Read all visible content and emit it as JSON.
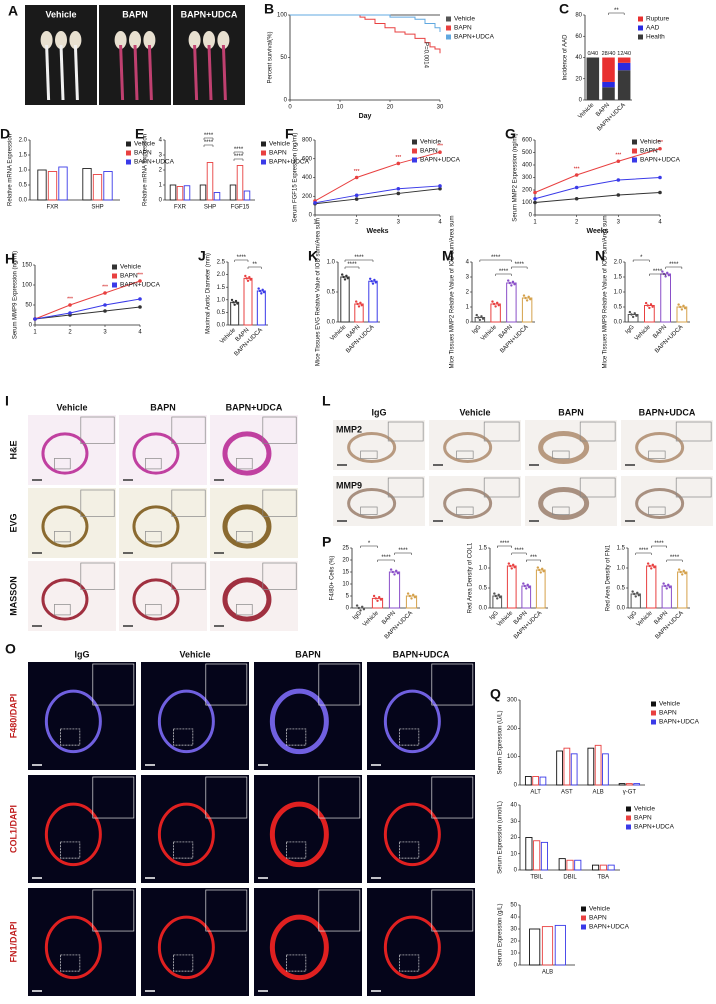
{
  "chart_data": [
    {
      "panel": "B",
      "type": "line",
      "step": true,
      "xlabel": "Day",
      "ylabel": "Percent survival(%)",
      "xlim": [
        0,
        30
      ],
      "xticks": [
        0,
        10,
        20,
        30
      ],
      "ylim": [
        0,
        100
      ],
      "yticks": [
        0,
        50,
        100
      ],
      "annotation": "P=0.0014",
      "legend": "right",
      "series": [
        {
          "name": "Vehicle",
          "color": "#555555",
          "x": [
            0,
            30
          ],
          "values": [
            100,
            100
          ]
        },
        {
          "name": "BAPN",
          "color": "#e84040",
          "x": [
            0,
            14,
            15,
            17,
            19,
            21,
            23,
            25,
            27,
            28,
            29,
            30
          ],
          "values": [
            100,
            97.5,
            95,
            90,
            85,
            80,
            77.5,
            72.5,
            67.5,
            62.5,
            60,
            55
          ]
        },
        {
          "name": "BAPN+UDCA",
          "color": "#60a8e0",
          "x": [
            0,
            20,
            25,
            27,
            29,
            30
          ],
          "values": [
            100,
            97.5,
            95,
            90,
            85,
            80
          ]
        }
      ]
    },
    {
      "panel": "C",
      "type": "stacked",
      "ylabel": "Incidence of AAD",
      "categories": [
        "Vehicle",
        "BAPN",
        "BAPN+UDCA"
      ],
      "ylim": [
        0,
        80
      ],
      "yticks": [
        0,
        20,
        40,
        60,
        80
      ],
      "legend": "right",
      "bar_annotations": [
        "0/40",
        "28/40",
        "12/40"
      ],
      "comparisons": [
        {
          "label": "**",
          "between": [
            1,
            2
          ]
        }
      ],
      "series": [
        {
          "name": "Rupture",
          "color": "#e83030",
          "values": [
            0,
            23,
            5
          ]
        },
        {
          "name": "AAD",
          "color": "#2a2ae0",
          "values": [
            0,
            5,
            7
          ]
        },
        {
          "name": "Health",
          "color": "#3a3a3a",
          "values": [
            40,
            12,
            28
          ]
        }
      ]
    },
    {
      "panel": "D",
      "type": "bar",
      "ylabel": "Relative mRNA Expression",
      "categories": [
        "FXR",
        "SHP"
      ],
      "ylim": [
        0,
        2
      ],
      "yticks": [
        {
          "value": 0,
          "label": "0.0"
        },
        {
          "value": 0.5,
          "label": "0.5"
        },
        {
          "value": 1,
          "label": "1.0"
        },
        {
          "value": 1.5,
          "label": "1.5"
        },
        {
          "value": 2,
          "label": "2.0"
        }
      ],
      "legend": "right",
      "series": [
        {
          "name": "Vehicle",
          "color": "#222222",
          "values": [
            1.0,
            1.05
          ]
        },
        {
          "name": "BAPN",
          "color": "#e84040",
          "values": [
            0.95,
            0.85
          ]
        },
        {
          "name": "BAPN+UDCA",
          "color": "#3a3ae8",
          "values": [
            1.1,
            0.95
          ]
        }
      ]
    },
    {
      "panel": "E",
      "type": "bar",
      "ylabel": "Relative mRNA Expression",
      "categories": [
        "FXR",
        "SHP",
        "FGF15"
      ],
      "ylim": [
        0,
        4
      ],
      "yticks": [
        0,
        1,
        2,
        3,
        4
      ],
      "legend": "right",
      "comparisons": [
        {
          "label": "****",
          "between": [
            1,
            1
          ]
        },
        {
          "label": "****",
          "between": [
            1,
            1
          ]
        },
        {
          "label": "****",
          "between": [
            2,
            2
          ]
        },
        {
          "label": "****",
          "between": [
            2,
            2
          ]
        }
      ],
      "series": [
        {
          "name": "Vehicle",
          "color": "#222222",
          "values": [
            1.0,
            1.0,
            1.0
          ]
        },
        {
          "name": "BAPN",
          "color": "#e84040",
          "values": [
            0.9,
            2.5,
            2.3
          ]
        },
        {
          "name": "BAPN+UDCA",
          "color": "#3a3ae8",
          "values": [
            0.95,
            0.5,
            0.6
          ]
        }
      ]
    },
    {
      "panel": "F",
      "type": "line",
      "xlabel": "Weeks",
      "ylabel": "Serum FGF15 Expression (ng/ml)",
      "x": [
        1,
        2,
        3,
        4
      ],
      "xlim": [
        1,
        4
      ],
      "xticks": [
        1,
        2,
        3,
        4
      ],
      "ylim": [
        0,
        800
      ],
      "yticks": [
        0,
        200,
        400,
        600,
        800
      ],
      "legend": "inside",
      "annotations": [
        "***",
        "***",
        "***"
      ],
      "series": [
        {
          "name": "Vehicle",
          "color": "#333333",
          "values": [
            120,
            170,
            230,
            280
          ]
        },
        {
          "name": "BAPN",
          "color": "#e84040",
          "values": [
            150,
            400,
            550,
            670
          ]
        },
        {
          "name": "BAPN+UDCA",
          "color": "#3a3ae8",
          "values": [
            130,
            210,
            280,
            310
          ]
        }
      ]
    },
    {
      "panel": "G",
      "type": "line",
      "xlabel": "Weeks",
      "ylabel": "Serum MMP2 Expression (ng/ml)",
      "x": [
        1,
        2,
        3,
        4
      ],
      "xlim": [
        1,
        4
      ],
      "xticks": [
        1,
        2,
        3,
        4
      ],
      "ylim": [
        0,
        600
      ],
      "yticks": [
        0,
        100,
        200,
        300,
        400,
        500,
        600
      ],
      "legend": "inside",
      "annotations": [
        "***",
        "***",
        "***"
      ],
      "series": [
        {
          "name": "Vehicle",
          "color": "#333333",
          "values": [
            100,
            130,
            160,
            180
          ]
        },
        {
          "name": "BAPN",
          "color": "#e84040",
          "values": [
            180,
            320,
            430,
            530
          ]
        },
        {
          "name": "BAPN+UDCA",
          "color": "#3a3ae8",
          "values": [
            130,
            220,
            280,
            300
          ]
        }
      ]
    },
    {
      "panel": "H",
      "type": "line",
      "ylabel": "Serum MMP9 Expression (ng/ml)",
      "x": [
        1,
        2,
        3,
        4
      ],
      "xlim": [
        1,
        4
      ],
      "xticks": [
        1,
        2,
        3,
        4
      ],
      "ylim": [
        0,
        150
      ],
      "yticks": [
        0,
        50,
        100,
        150
      ],
      "legend": "inside",
      "annotations": [
        "***",
        "***",
        "***"
      ],
      "series": [
        {
          "name": "Vehicle",
          "color": "#333333",
          "values": [
            15,
            25,
            35,
            45
          ]
        },
        {
          "name": "BAPN",
          "color": "#e84040",
          "values": [
            15,
            50,
            80,
            110
          ]
        },
        {
          "name": "BAPN+UDCA",
          "color": "#3a3ae8",
          "values": [
            15,
            30,
            50,
            65
          ]
        }
      ]
    },
    {
      "panel": "J",
      "type": "bar",
      "ylabel": "Maximal Aortic Diameter (mm)",
      "categories": [
        "Vehicle",
        "BAPN",
        "BAPN+UDCA"
      ],
      "colors": [
        "#333333",
        "#e84040",
        "#3a3ae8"
      ],
      "values": [
        0.9,
        1.85,
        1.35
      ],
      "ylim": [
        0,
        2.5
      ],
      "yticks": [
        {
          "value": 0,
          "label": "0.0"
        },
        {
          "value": 0.5,
          "label": "0.5"
        },
        {
          "value": 1,
          "label": "1.0"
        },
        {
          "value": 1.5,
          "label": "1.5"
        },
        {
          "value": 2,
          "label": "2.0"
        },
        {
          "value": 2.5,
          "label": "2.5"
        }
      ],
      "comparisons": [
        {
          "label": "****",
          "between": [
            0,
            1
          ]
        },
        {
          "label": "**",
          "between": [
            1,
            2
          ]
        }
      ]
    },
    {
      "panel": "K",
      "type": "bar",
      "ylabel": "Mice Tissues EVG Relative Value of IOD sum/Area sum",
      "categories": [
        "Vehicle",
        "BAPN",
        "BAPN+UDCA"
      ],
      "colors": [
        "#333333",
        "#e84040",
        "#3a3ae8"
      ],
      "values": [
        0.75,
        0.3,
        0.68
      ],
      "ylim": [
        0,
        1
      ],
      "yticks": [
        {
          "value": 0,
          "label": "0.0"
        },
        {
          "value": 0.5,
          "label": "0.5"
        },
        {
          "value": 1,
          "label": "1.0"
        }
      ],
      "comparisons": [
        {
          "label": "****",
          "between": [
            0,
            2
          ]
        },
        {
          "label": "****",
          "between": [
            0,
            1
          ]
        }
      ]
    },
    {
      "panel": "M",
      "type": "bar",
      "ylabel": "Mice Tissues MMP2 Relative Value of IOD sum/Area sum",
      "categories": [
        "IgG",
        "Vehicle",
        "BAPN",
        "BAPN+UDCA"
      ],
      "colors": [
        "#555555",
        "#e84040",
        "#8a4fc8",
        "#d4a04a"
      ],
      "values": [
        0.3,
        1.2,
        2.6,
        1.6
      ],
      "ylim": [
        0,
        4
      ],
      "yticks": [
        0,
        1,
        2,
        3,
        4
      ],
      "comparisons": [
        {
          "label": "****",
          "between": [
            0,
            2
          ]
        },
        {
          "label": "****",
          "between": [
            2,
            3
          ]
        },
        {
          "label": "****",
          "between": [
            1,
            2
          ]
        }
      ]
    },
    {
      "panel": "N",
      "type": "bar",
      "ylabel": "Mice Tissues MMP9 Relative Value of IOD sum/Area sum",
      "categories": [
        "IgG",
        "Vehicle",
        "BAPN",
        "BAPN+UDCA"
      ],
      "colors": [
        "#555555",
        "#e84040",
        "#8a4fc8",
        "#d4a04a"
      ],
      "values": [
        0.25,
        0.55,
        1.6,
        0.5
      ],
      "ylim": [
        0,
        2
      ],
      "yticks": [
        {
          "value": 0,
          "label": "0.0"
        },
        {
          "value": 0.5,
          "label": "0.5"
        },
        {
          "value": 1,
          "label": "1.0"
        },
        {
          "value": 1.5,
          "label": "1.5"
        },
        {
          "value": 2,
          "label": "2.0"
        }
      ],
      "comparisons": [
        {
          "label": "*",
          "between": [
            0,
            1
          ]
        },
        {
          "label": "****",
          "between": [
            2,
            3
          ]
        },
        {
          "label": "****",
          "between": [
            1,
            2
          ]
        }
      ]
    },
    {
      "panel": "P",
      "type": "bar",
      "ylabel": "F4/80+ Cells (%)",
      "categories": [
        "IgG",
        "Vehicle",
        "BAPN",
        "BAPN+UDCA"
      ],
      "colors": [
        "#555555",
        "#e84040",
        "#8a4fc8",
        "#d4a04a"
      ],
      "values": [
        0,
        4,
        15,
        5
      ],
      "ylim": [
        0,
        25
      ],
      "yticks": [
        0,
        5,
        10,
        15,
        20,
        25
      ],
      "comparisons": [
        {
          "label": "*",
          "between": [
            0,
            1
          ]
        },
        {
          "label": "****",
          "between": [
            2,
            3
          ]
        },
        {
          "label": "****",
          "between": [
            1,
            2
          ]
        }
      ]
    },
    {
      "type": "bar",
      "ylabel": "Red Area Density of COL1",
      "categories": [
        "IgG",
        "Vehicle",
        "BAPN",
        "BAPN+UDCA"
      ],
      "colors": [
        "#555555",
        "#e84040",
        "#8a4fc8",
        "#d4a04a"
      ],
      "values": [
        0.3,
        1.05,
        0.55,
        0.95
      ],
      "ylim": [
        0,
        1.5
      ],
      "yticks": [
        {
          "value": 0,
          "label": "0.0"
        },
        {
          "value": 0.5,
          "label": "0.5"
        },
        {
          "value": 1,
          "label": "1.0"
        },
        {
          "value": 1.5,
          "label": "1.5"
        }
      ],
      "comparisons": [
        {
          "label": "****",
          "between": [
            0,
            1
          ]
        },
        {
          "label": "****",
          "between": [
            1,
            2
          ]
        },
        {
          "label": "***",
          "between": [
            2,
            3
          ]
        }
      ]
    },
    {
      "type": "bar",
      "ylabel": "Red Area Density of FN1",
      "categories": [
        "IgG",
        "Vehicle",
        "BAPN",
        "BAPN+UDCA"
      ],
      "colors": [
        "#555555",
        "#e84040",
        "#8a4fc8",
        "#d4a04a"
      ],
      "values": [
        0.35,
        1.05,
        0.55,
        0.9
      ],
      "ylim": [
        0,
        1.5
      ],
      "yticks": [
        {
          "value": 0,
          "label": "0.0"
        },
        {
          "value": 0.5,
          "label": "0.5"
        },
        {
          "value": 1,
          "label": "1.0"
        },
        {
          "value": 1.5,
          "label": "1.5"
        }
      ],
      "comparisons": [
        {
          "label": "****",
          "between": [
            1,
            2
          ]
        },
        {
          "label": "****",
          "between": [
            0,
            1
          ]
        },
        {
          "label": "****",
          "between": [
            2,
            3
          ]
        }
      ]
    },
    {
      "panel": "Q",
      "type": "bar",
      "ylabel": "Serum Expression (U/L)",
      "categories": [
        "ALT",
        "AST",
        "ALB",
        "γ-GT"
      ],
      "ylim": [
        0,
        300
      ],
      "yticks": [
        0,
        100,
        200,
        300
      ],
      "legend": "right",
      "series": [
        {
          "name": "Vehicle",
          "color": "#111111",
          "values": [
            30,
            120,
            130,
            5
          ]
        },
        {
          "name": "BAPN",
          "color": "#e84040",
          "values": [
            30,
            130,
            140,
            5
          ]
        },
        {
          "name": "BAPN+UDCA",
          "color": "#3a3ae8",
          "values": [
            28,
            110,
            110,
            5
          ]
        }
      ]
    },
    {
      "type": "bar",
      "ylabel": "Serum Expression (umol/L)",
      "categories": [
        "TBIL",
        "DBIL",
        "TBA"
      ],
      "ylim": [
        0,
        40
      ],
      "yticks": [
        0,
        10,
        20,
        30,
        40
      ],
      "legend": "right",
      "series": [
        {
          "name": "Vehicle",
          "color": "#111111",
          "values": [
            20,
            7,
            3
          ]
        },
        {
          "name": "BAPN",
          "color": "#e84040",
          "values": [
            18,
            6,
            3
          ]
        },
        {
          "name": "BAPN+UDCA",
          "color": "#3a3ae8",
          "values": [
            17,
            6,
            3
          ]
        }
      ]
    },
    {
      "type": "bar",
      "ylabel": "Serum Expression (g/L)",
      "categories": [
        "ALB"
      ],
      "ylim": [
        0,
        50
      ],
      "yticks": [
        0,
        10,
        20,
        30,
        40,
        50
      ],
      "legend": "right",
      "series": [
        {
          "name": "Vehicle",
          "color": "#111111",
          "values": [
            30
          ]
        },
        {
          "name": "BAPN",
          "color": "#e84040",
          "values": [
            32
          ]
        },
        {
          "name": "BAPN+UDCA",
          "color": "#3a3ae8",
          "values": [
            33
          ]
        }
      ]
    }
  ],
  "image_panels": [
    {
      "panel": "A",
      "columns": [
        "Vehicle",
        "BAPN",
        "BAPN+UDCA"
      ]
    },
    {
      "panel": "I",
      "columns": [
        "Vehicle",
        "BAPN",
        "BAPN+UDCA"
      ],
      "rows": [
        "H&E",
        "EVG",
        "MASSON"
      ]
    },
    {
      "panel": "L",
      "columns": [
        "IgG",
        "Vehicle",
        "BAPN",
        "BAPN+UDCA"
      ],
      "rows": [
        "MMP2",
        "MMP9"
      ]
    },
    {
      "panel": "O",
      "columns": [
        "IgG",
        "Vehicle",
        "BAPN",
        "BAPN+UDCA"
      ],
      "rows": [
        "F480/DAPI",
        "COL1/DAPI",
        "FN1/DAPI"
      ]
    }
  ]
}
